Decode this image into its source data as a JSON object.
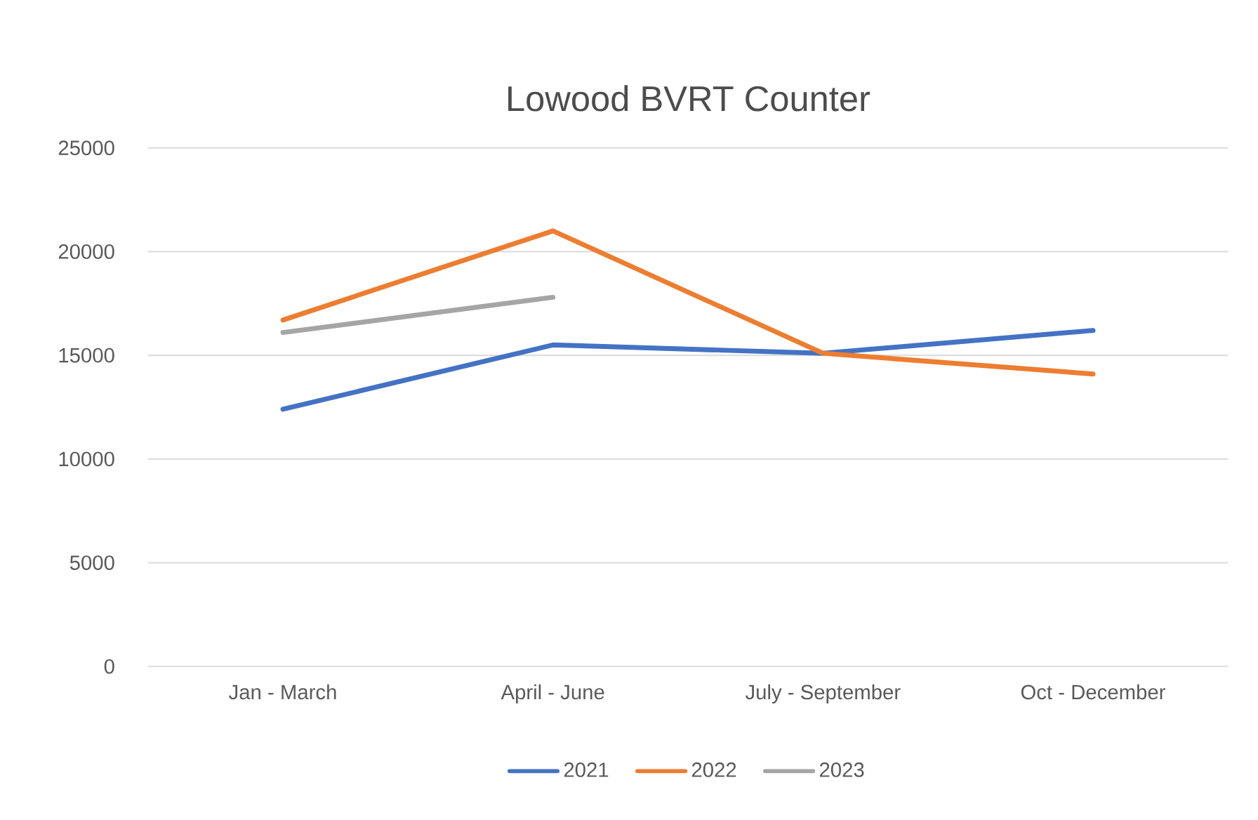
{
  "chart_data": {
    "type": "line",
    "title": "Lowood BVRT Counter",
    "categories": [
      "Jan - March",
      "April - June",
      "July - September",
      "Oct - December"
    ],
    "series": [
      {
        "name": "2021",
        "color": "#4472c4",
        "values": [
          12400,
          15500,
          15100,
          16200
        ]
      },
      {
        "name": "2022",
        "color": "#ed7d31",
        "values": [
          16700,
          21000,
          15100,
          14100
        ]
      },
      {
        "name": "2023",
        "color": "#a5a5a5",
        "values": [
          16100,
          17800,
          null,
          null
        ]
      }
    ],
    "ylim": [
      0,
      25000
    ],
    "yticks": [
      0,
      5000,
      10000,
      15000,
      20000,
      25000
    ],
    "grid": "y",
    "legend": "bottom",
    "marker": "none",
    "line_style": "solid"
  }
}
